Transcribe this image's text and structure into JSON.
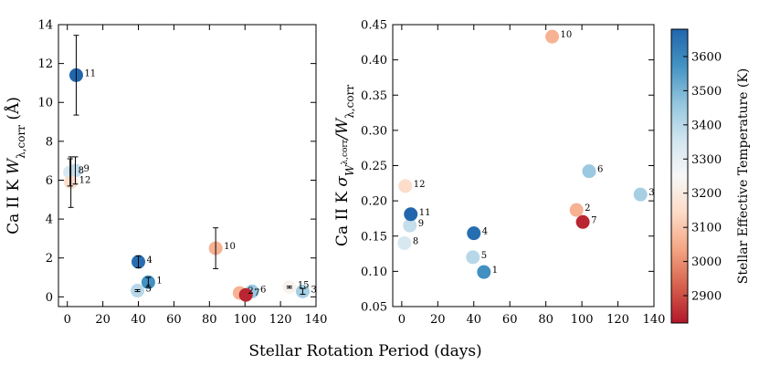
{
  "figure": {
    "xlabel": "Stellar Rotation Period (days)",
    "colorbar": {
      "label": "Stellar Effective Temperature (K)",
      "range": [
        2820,
        3680
      ],
      "ticks": [
        2900,
        3000,
        3100,
        3200,
        3300,
        3400,
        3500,
        3600
      ],
      "tick_labels": [
        "2900",
        "3000",
        "3100",
        "3200",
        "3300",
        "3400",
        "3500",
        "3600"
      ],
      "colors": [
        "#b2182b",
        "#d6604d",
        "#f4a582",
        "#fddbc7",
        "#f7f7f7",
        "#d1e5f0",
        "#92c5de",
        "#4393c3",
        "#2166ac"
      ]
    }
  },
  "chart_data": [
    {
      "type": "scatter",
      "title": "",
      "xlabel": "Stellar Rotation Period (days)",
      "ylabel": "Ca II K W_λ,corr (Å)",
      "ylabel_parts": {
        "main": "Ca II K ",
        "symbol": "W",
        "sub": "λ,corr",
        "unit": " (Å)"
      },
      "xlim": [
        -5,
        140
      ],
      "ylim": [
        -0.5,
        14
      ],
      "xticks": [
        0,
        20,
        40,
        60,
        80,
        100,
        120,
        140
      ],
      "xtick_labels": [
        "0",
        "20",
        "40",
        "60",
        "80",
        "100",
        "120",
        "140"
      ],
      "yticks": [
        0,
        2,
        4,
        6,
        8,
        10,
        12,
        14
      ],
      "ytick_labels": [
        "0",
        "2",
        "4",
        "6",
        "8",
        "10",
        "12",
        "14"
      ],
      "points": [
        {
          "label": "1",
          "x": 45.6,
          "y": 0.75,
          "err": 0.25,
          "teff": 3580
        },
        {
          "label": "2",
          "x": 97.0,
          "y": 0.2,
          "err": 0.0,
          "teff": 3060
        },
        {
          "label": "3",
          "x": 132.5,
          "y": 0.28,
          "err": 0.15,
          "teff": 3430
        },
        {
          "label": "4",
          "x": 40.0,
          "y": 1.8,
          "err": 0.3,
          "teff": 3660
        },
        {
          "label": "5",
          "x": 39.5,
          "y": 0.32,
          "err": 0.05,
          "teff": 3400
        },
        {
          "label": "6",
          "x": 104.0,
          "y": 0.28,
          "err": 0.0,
          "teff": 3450
        },
        {
          "label": "7",
          "x": 100.5,
          "y": 0.1,
          "err": 0.0,
          "teff": 2840
        },
        {
          "label": "8",
          "x": 1.5,
          "y": 6.4,
          "err": 0.7,
          "teff": 3340
        },
        {
          "label": "9",
          "x": 4.5,
          "y": 6.5,
          "err": 0.7,
          "teff": 3380
        },
        {
          "label": "10",
          "x": 83.5,
          "y": 2.5,
          "err": 1.05,
          "teff": 3060
        },
        {
          "label": "11",
          "x": 5.0,
          "y": 11.4,
          "err": 2.05,
          "teff": 3680
        },
        {
          "label": "12",
          "x": 2.0,
          "y": 5.9,
          "err": 1.3,
          "teff": 3150
        },
        {
          "label": "15",
          "x": 125.0,
          "y": 0.5,
          "err": 0.05,
          "teff": 3230
        }
      ]
    },
    {
      "type": "scatter",
      "title": "",
      "xlabel": "Stellar Rotation Period (days)",
      "ylabel": "Ca II K σ_W_λ,corr / W_λ,corr",
      "ylabel_parts": {
        "main": "Ca II K ",
        "symbol": "σ",
        "symsub": "W",
        "subsub": "λ,corr",
        "slash": "/W",
        "sub": "λ,corr"
      },
      "xlim": [
        -5,
        140
      ],
      "ylim": [
        0.05,
        0.45
      ],
      "xticks": [
        0,
        20,
        40,
        60,
        80,
        100,
        120,
        140
      ],
      "xtick_labels": [
        "0",
        "20",
        "40",
        "60",
        "80",
        "100",
        "120",
        "140"
      ],
      "yticks": [
        0.05,
        0.1,
        0.15,
        0.2,
        0.25,
        0.3,
        0.35,
        0.4,
        0.45
      ],
      "ytick_labels": [
        "0.05",
        "0.10",
        "0.15",
        "0.20",
        "0.25",
        "0.30",
        "0.35",
        "0.40",
        "0.45"
      ],
      "points": [
        {
          "label": "1",
          "x": 45.6,
          "y": 0.099,
          "teff": 3580
        },
        {
          "label": "2",
          "x": 97.0,
          "y": 0.187,
          "teff": 3060
        },
        {
          "label": "3",
          "x": 132.5,
          "y": 0.209,
          "teff": 3430
        },
        {
          "label": "4",
          "x": 40.0,
          "y": 0.154,
          "teff": 3660
        },
        {
          "label": "5",
          "x": 39.5,
          "y": 0.12,
          "teff": 3400
        },
        {
          "label": "6",
          "x": 104.0,
          "y": 0.242,
          "teff": 3450
        },
        {
          "label": "7",
          "x": 100.5,
          "y": 0.17,
          "teff": 2840
        },
        {
          "label": "8",
          "x": 1.5,
          "y": 0.14,
          "teff": 3340
        },
        {
          "label": "9",
          "x": 4.5,
          "y": 0.165,
          "teff": 3380
        },
        {
          "label": "10",
          "x": 83.5,
          "y": 0.433,
          "teff": 3060
        },
        {
          "label": "11",
          "x": 5.0,
          "y": 0.181,
          "teff": 3680
        },
        {
          "label": "12",
          "x": 2.0,
          "y": 0.221,
          "teff": 3150
        }
      ]
    }
  ]
}
